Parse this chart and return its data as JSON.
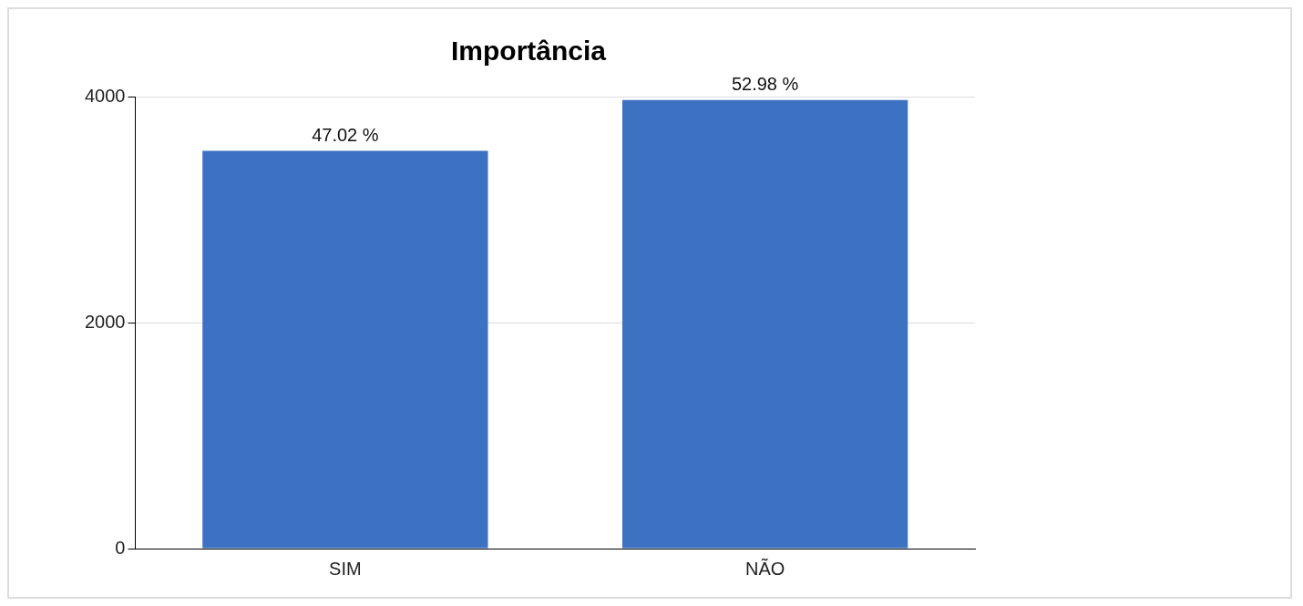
{
  "chart_data": {
    "type": "bar",
    "title": "Importância",
    "categories": [
      "SIM",
      "NÃO"
    ],
    "values": [
      3520,
      3970
    ],
    "color": "#3d72c2",
    "ylim": [
      0,
      4000
    ],
    "yticks": [
      0,
      2000,
      4000
    ],
    "grid": "y",
    "legend": false,
    "annotations": [
      {
        "text": "47.02 %",
        "x": "SIM",
        "y": 3520
      },
      {
        "text": "52.98 %",
        "x": "NÃO",
        "y": 3970
      }
    ]
  }
}
